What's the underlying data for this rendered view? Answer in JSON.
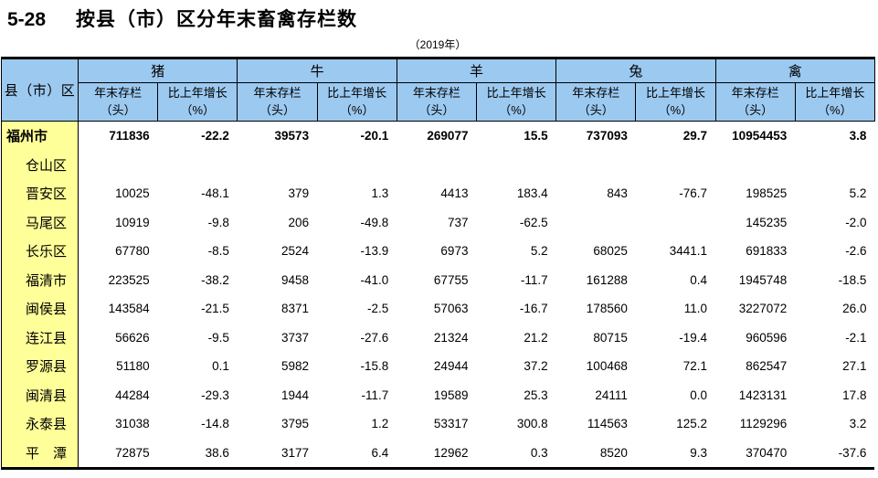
{
  "page": {
    "table_number": "5-28",
    "title": "按县（市）区分年末畜禽存栏数",
    "year_note": "（2019年）"
  },
  "table": {
    "row_header": "县（市）区",
    "groups": [
      {
        "key": "pig",
        "label": "猪"
      },
      {
        "key": "cattle",
        "label": "牛"
      },
      {
        "key": "sheep",
        "label": "羊"
      },
      {
        "key": "rabbit",
        "label": "兔"
      },
      {
        "key": "poultry",
        "label": "禽"
      }
    ],
    "subheader": {
      "stock_line1": "年末存栏",
      "stock_line2": "（头）",
      "growth_line1": "比上年增长",
      "growth_line2": "（%）"
    },
    "colors": {
      "header_bg": "#9CC9F0",
      "row_label_bg": "#FFFF99",
      "border": "#000000"
    },
    "rows": [
      {
        "name": "福州市",
        "bold": true,
        "values": [
          "711836",
          "-22.2",
          "39573",
          "-20.1",
          "269077",
          "15.5",
          "737093",
          "29.7",
          "10954453",
          "3.8"
        ]
      },
      {
        "name": "仓山区",
        "bold": false,
        "values": [
          "",
          "",
          "",
          "",
          "",
          "",
          "",
          "",
          "",
          ""
        ]
      },
      {
        "name": "晋安区",
        "bold": false,
        "values": [
          "10025",
          "-48.1",
          "379",
          "1.3",
          "4413",
          "183.4",
          "843",
          "-76.7",
          "198525",
          "5.2"
        ]
      },
      {
        "name": "马尾区",
        "bold": false,
        "values": [
          "10919",
          "-9.8",
          "206",
          "-49.8",
          "737",
          "-62.5",
          "",
          "",
          "145235",
          "-2.0"
        ]
      },
      {
        "name": "长乐区",
        "bold": false,
        "values": [
          "67780",
          "-8.5",
          "2524",
          "-13.9",
          "6973",
          "5.2",
          "68025",
          "3441.1",
          "691833",
          "-2.6"
        ]
      },
      {
        "name": "福清市",
        "bold": false,
        "values": [
          "223525",
          "-38.2",
          "9458",
          "-41.0",
          "67755",
          "-11.7",
          "161288",
          "0.4",
          "1945748",
          "-18.5"
        ]
      },
      {
        "name": "闽侯县",
        "bold": false,
        "values": [
          "143584",
          "-21.5",
          "8371",
          "-2.5",
          "57063",
          "-16.7",
          "178560",
          "11.0",
          "3227072",
          "26.0"
        ]
      },
      {
        "name": "连江县",
        "bold": false,
        "values": [
          "56626",
          "-9.5",
          "3737",
          "-27.6",
          "21324",
          "21.2",
          "80715",
          "-19.4",
          "960596",
          "-2.1"
        ]
      },
      {
        "name": "罗源县",
        "bold": false,
        "values": [
          "51180",
          "0.1",
          "5982",
          "-15.8",
          "24944",
          "37.2",
          "100468",
          "72.1",
          "862547",
          "27.1"
        ]
      },
      {
        "name": "闽清县",
        "bold": false,
        "values": [
          "44284",
          "-29.3",
          "1944",
          "-11.7",
          "19589",
          "25.3",
          "24111",
          "0.0",
          "1423131",
          "17.8"
        ]
      },
      {
        "name": "永泰县",
        "bold": false,
        "values": [
          "31038",
          "-14.8",
          "3795",
          "1.2",
          "53317",
          "300.8",
          "114563",
          "125.2",
          "1129296",
          "3.2"
        ]
      },
      {
        "name": "平　潭",
        "bold": false,
        "values": [
          "72875",
          "38.6",
          "3177",
          "6.4",
          "12962",
          "0.3",
          "8520",
          "9.3",
          "370470",
          "-37.6"
        ]
      }
    ]
  }
}
